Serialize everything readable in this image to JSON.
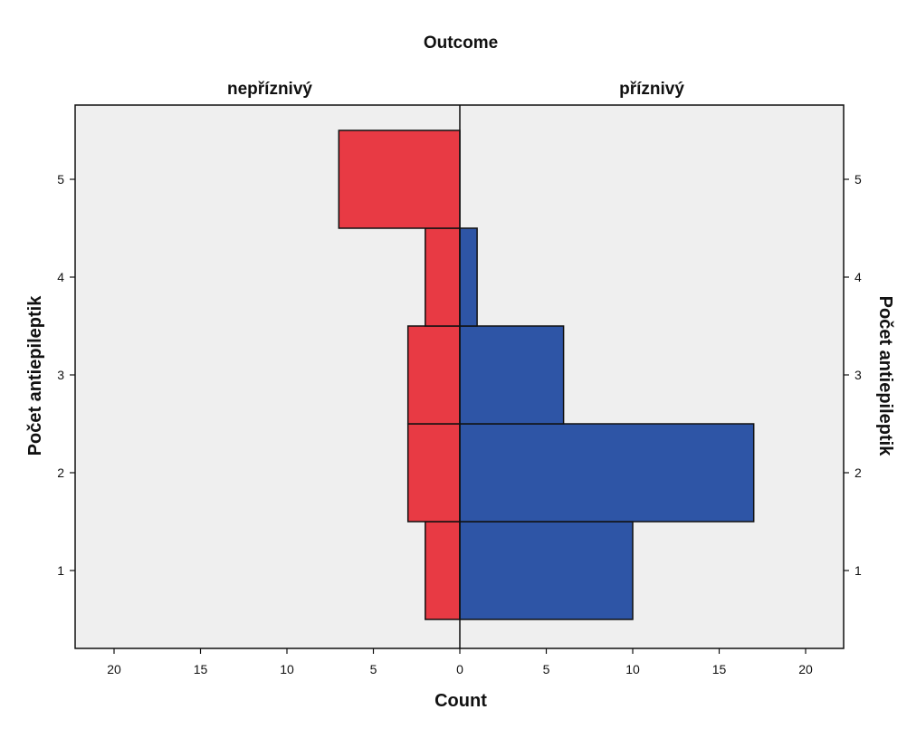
{
  "chart_data": {
    "type": "bar",
    "orientation": "horizontal",
    "layout": "population-pyramid",
    "title": "Outcome",
    "xlabel": "Count",
    "ylabel": "Počet antiepileptik",
    "ylabel_right": "Počet antiepileptik",
    "categories": [
      "1",
      "2",
      "3",
      "4",
      "5"
    ],
    "panels": [
      "nepříznivý",
      "příznivý"
    ],
    "xlim": [
      0,
      22
    ],
    "x_ticks": [
      "20",
      "15",
      "10",
      "5",
      "0",
      "5",
      "10",
      "15",
      "20"
    ],
    "grid": false,
    "series": [
      {
        "name": "nepříznivý",
        "side": "left",
        "color": "#e83a44",
        "values": [
          2,
          3,
          3,
          2,
          7
        ]
      },
      {
        "name": "příznivý",
        "side": "right",
        "color": "#2e55a6",
        "values": [
          10,
          17,
          6,
          1,
          0
        ]
      }
    ]
  },
  "colors": {
    "plot_background": "#efefef",
    "outline": "#111111"
  }
}
